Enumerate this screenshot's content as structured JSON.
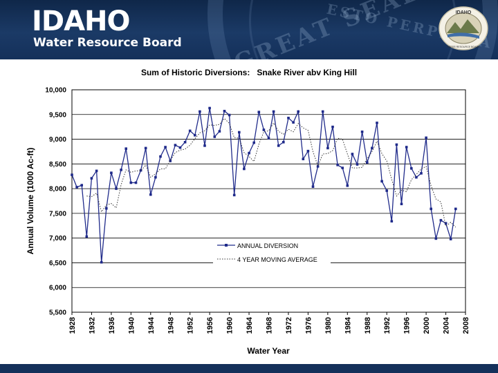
{
  "header": {
    "logo_title": "IDAHO",
    "logo_subtitle": "Water Resource Board",
    "seal_motto": "ESTO PERPETUA",
    "seal_arc_text": "GREAT SEAL",
    "mini_seal_top": "IDAHO",
    "mini_seal_bottom": "WATER RESOURCE BOARD",
    "colors": {
      "banner": "#1b3a66",
      "text": "#ffffff"
    }
  },
  "chart_data": {
    "type": "line",
    "title": "Sum of Historic Diversions:   Snake River abv King Hill",
    "xlabel": "Water Year",
    "ylabel": "Annual Volume (1000 Ac-ft)",
    "ylim": [
      5500,
      10000
    ],
    "xlim": [
      1928,
      2008
    ],
    "y_ticks": [
      5500,
      6000,
      6500,
      7000,
      7500,
      8000,
      8500,
      9000,
      9500,
      10000
    ],
    "y_tick_labels": [
      "5,500",
      "6,000",
      "6,500",
      "7,000",
      "7,500",
      "8,000",
      "8,500",
      "9,000",
      "9,500",
      "10,000"
    ],
    "x_ticks": [
      1928,
      1932,
      1936,
      1940,
      1944,
      1948,
      1952,
      1956,
      1960,
      1964,
      1968,
      1972,
      1976,
      1980,
      1984,
      1988,
      1992,
      1996,
      2000,
      2004,
      2008
    ],
    "grid": "horizontal",
    "legend_position": "lower-center",
    "series": [
      {
        "name": "ANNUAL DIVERSION",
        "style": "solid line with markers",
        "color": "#1f2a8a",
        "x": [
          1928,
          1929,
          1930,
          1931,
          1932,
          1933,
          1934,
          1935,
          1936,
          1937,
          1938,
          1939,
          1940,
          1941,
          1942,
          1943,
          1944,
          1945,
          1946,
          1947,
          1948,
          1949,
          1950,
          1951,
          1952,
          1953,
          1954,
          1955,
          1956,
          1957,
          1958,
          1959,
          1960,
          1961,
          1962,
          1963,
          1964,
          1965,
          1966,
          1967,
          1968,
          1969,
          1970,
          1971,
          1972,
          1973,
          1974,
          1975,
          1976,
          1977,
          1978,
          1979,
          1980,
          1981,
          1982,
          1983,
          1984,
          1985,
          1986,
          1987,
          1988,
          1989,
          1990,
          1991,
          1992,
          1993,
          1994,
          1995,
          1996,
          1997,
          1998,
          1999,
          2000,
          2001,
          2002,
          2003,
          2004,
          2005,
          2006
        ],
        "values": [
          8280,
          8030,
          8070,
          7030,
          8210,
          8360,
          6510,
          7600,
          8320,
          8000,
          8380,
          8810,
          8120,
          8120,
          8370,
          8820,
          7880,
          8230,
          8650,
          8840,
          8560,
          8880,
          8830,
          8940,
          9170,
          9080,
          9560,
          8870,
          9630,
          9050,
          9160,
          9570,
          9490,
          7870,
          9140,
          8400,
          8720,
          8930,
          9550,
          9190,
          9020,
          9560,
          8870,
          8940,
          9430,
          9340,
          9560,
          8600,
          8760,
          8040,
          8450,
          9560,
          8820,
          9250,
          8480,
          8420,
          8060,
          8700,
          8490,
          9150,
          8530,
          8820,
          9330,
          8150,
          7960,
          7340,
          8890,
          7690,
          8840,
          8410,
          8230,
          8310,
          9030,
          7590,
          6990,
          7360,
          7300,
          6980,
          7590
        ]
      },
      {
        "name": "4 YEAR MOVING AVERAGE",
        "style": "dotted line",
        "color": "#333333",
        "x": [
          1931,
          1932,
          1933,
          1934,
          1935,
          1936,
          1937,
          1938,
          1939,
          1940,
          1941,
          1942,
          1943,
          1944,
          1945,
          1946,
          1947,
          1948,
          1949,
          1950,
          1951,
          1952,
          1953,
          1954,
          1955,
          1956,
          1957,
          1958,
          1959,
          1960,
          1961,
          1962,
          1963,
          1964,
          1965,
          1966,
          1967,
          1968,
          1969,
          1970,
          1971,
          1972,
          1973,
          1974,
          1975,
          1976,
          1977,
          1978,
          1979,
          1980,
          1981,
          1982,
          1983,
          1984,
          1985,
          1986,
          1987,
          1988,
          1989,
          1990,
          1991,
          1992,
          1993,
          1994,
          1995,
          1996,
          1997,
          1998,
          1999,
          2000,
          2001,
          2002,
          2003,
          2004,
          2005,
          2006
        ],
        "values": [
          7850,
          7840,
          7910,
          7530,
          7670,
          7700,
          7610,
          8080,
          8380,
          8330,
          8360,
          8360,
          8480,
          8230,
          8300,
          8400,
          8400,
          8570,
          8730,
          8780,
          8800,
          8880,
          9010,
          9130,
          9170,
          9290,
          9280,
          9300,
          9420,
          9320,
          9030,
          9020,
          8730,
          8650,
          8550,
          8900,
          9150,
          9170,
          9330,
          9160,
          9100,
          9200,
          9150,
          9320,
          9230,
          9180,
          8750,
          8460,
          8700,
          8710,
          8770,
          9020,
          9000,
          8700,
          8420,
          8420,
          8430,
          8610,
          8750,
          8960,
          8710,
          8560,
          8190,
          7850,
          7970,
          7940,
          8180,
          8290,
          8400,
          8450,
          8060,
          7790,
          7730,
          7240,
          7320,
          7220
        ]
      }
    ]
  }
}
